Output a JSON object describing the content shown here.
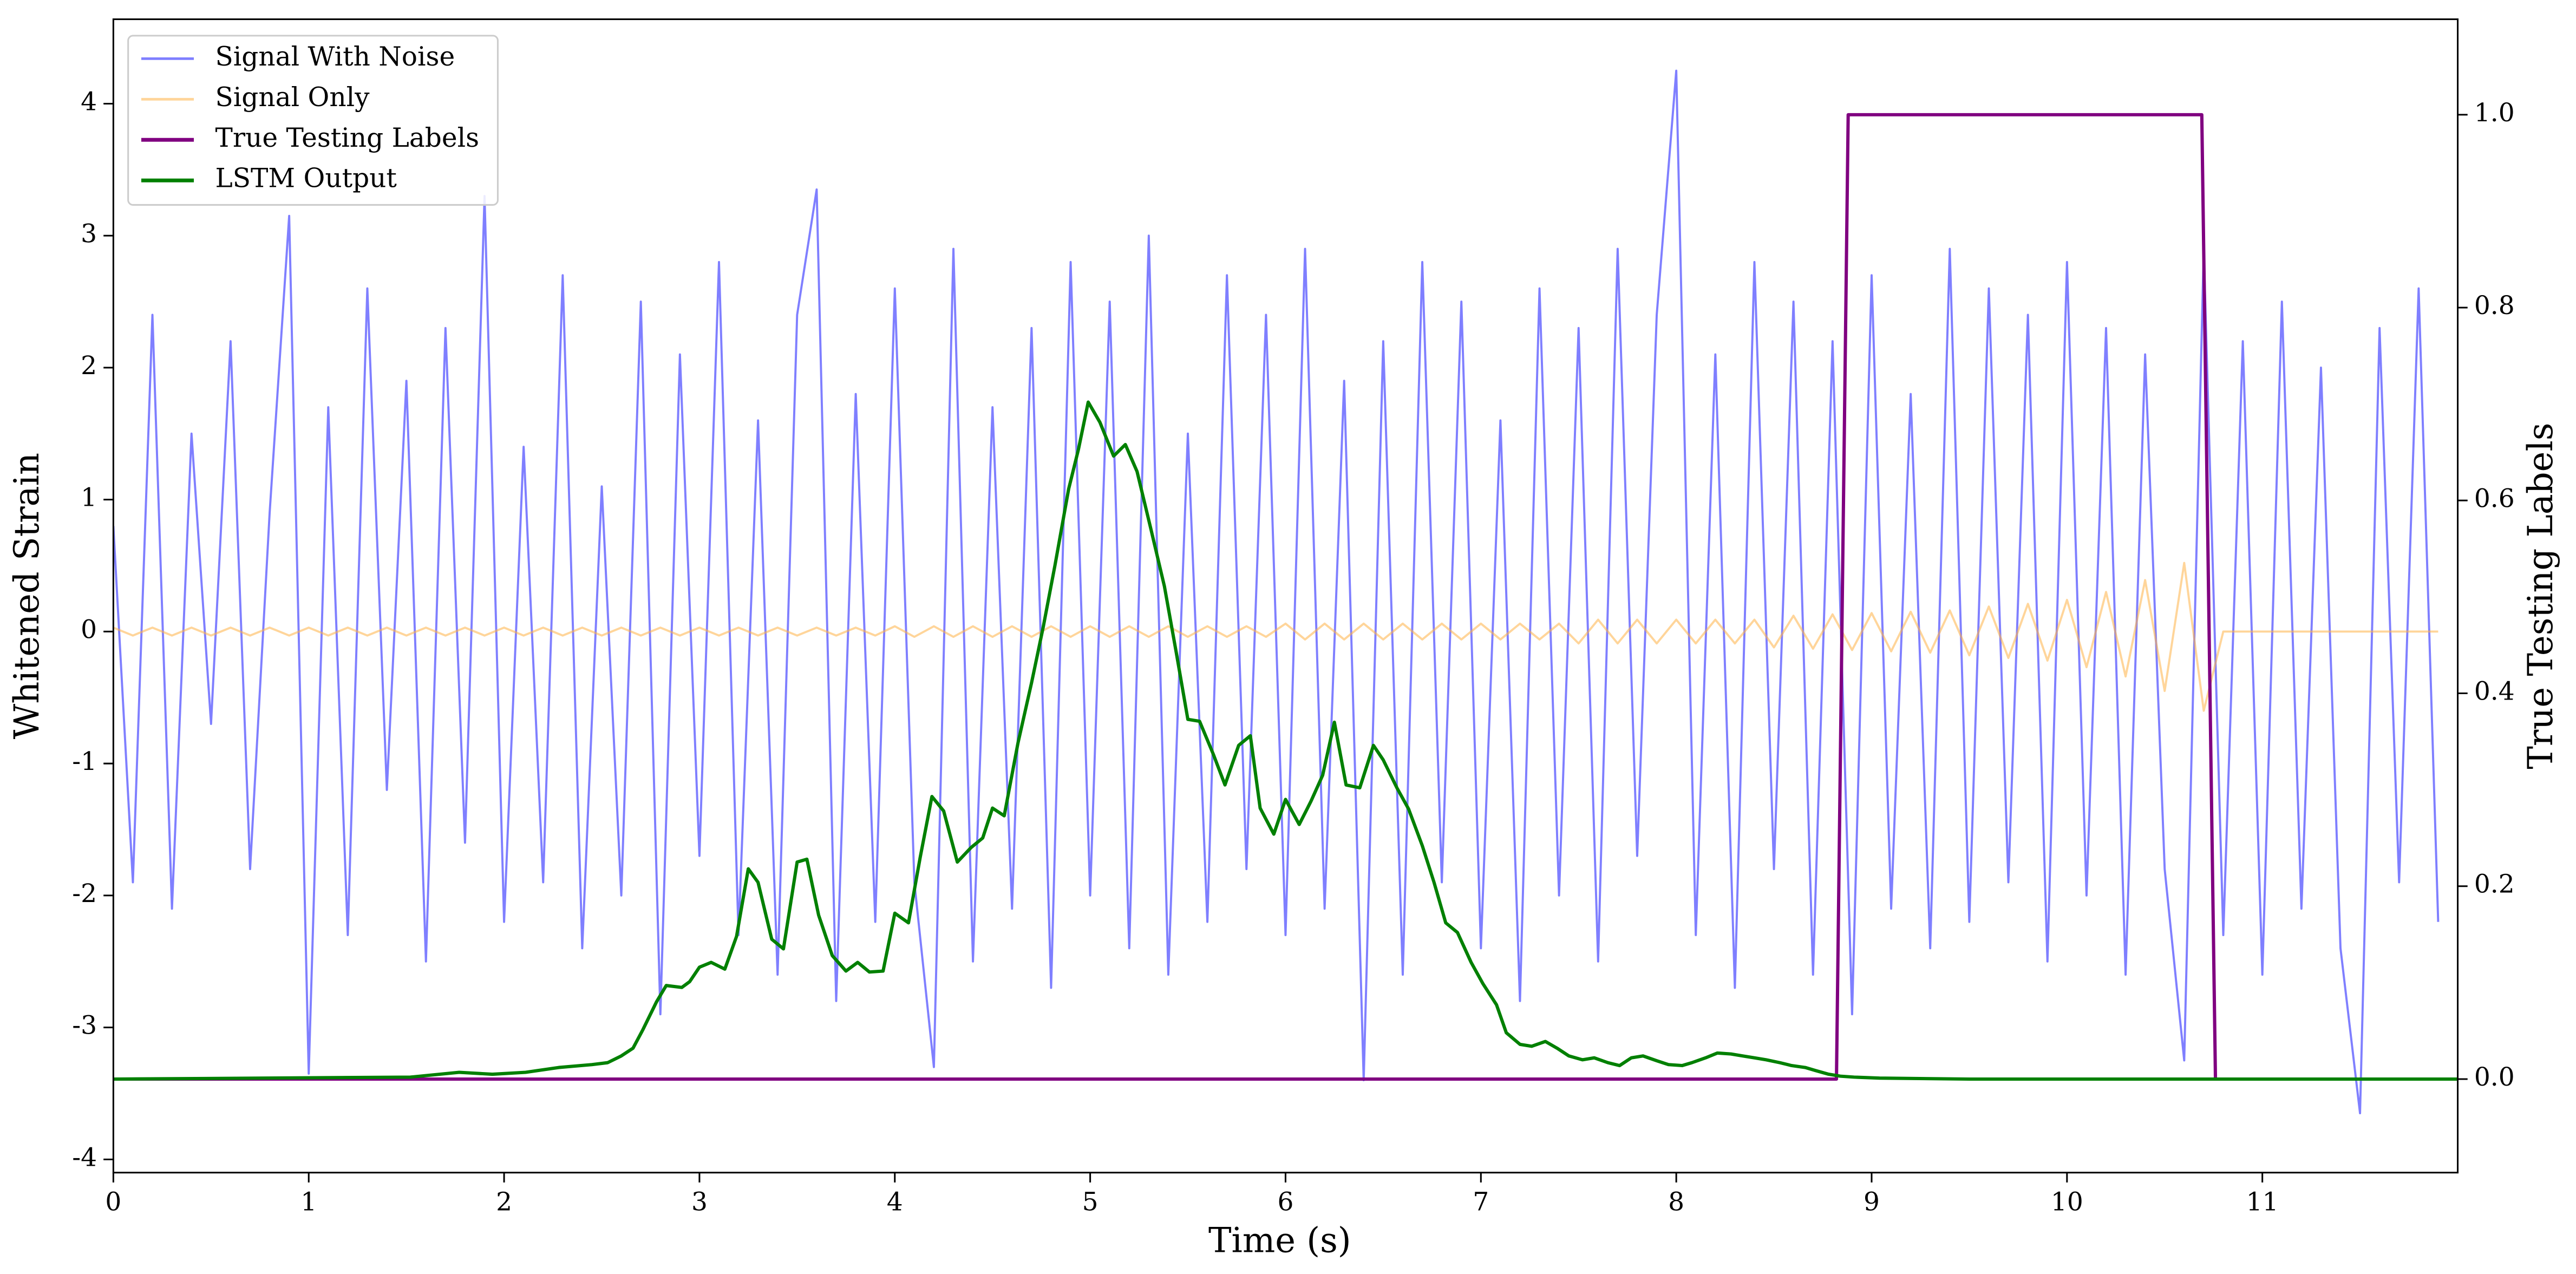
{
  "chart_data": {
    "type": "line",
    "x_label": "Time (s)",
    "y_label": "Whitened Strain",
    "y2_label": "True Testing Labels",
    "xlim": [
      0,
      12
    ],
    "ylim": [
      -4.1,
      4.64
    ],
    "y2lim": [
      -0.097,
      1.099
    ],
    "xticks": [
      0,
      1,
      2,
      3,
      4,
      5,
      6,
      7,
      8,
      9,
      10,
      11
    ],
    "yticks": [
      -4,
      -3,
      -2,
      -1,
      0,
      1,
      2,
      3,
      4
    ],
    "y2ticks": [
      {
        "value": 0,
        "label": "0.0"
      },
      {
        "value": 0.2,
        "label": "0.2"
      },
      {
        "value": 0.4,
        "label": "0.4"
      },
      {
        "value": 0.6,
        "label": "0.6"
      },
      {
        "value": 0.8,
        "label": "0.8"
      },
      {
        "value": 1,
        "label": "1.0"
      }
    ],
    "legend": "upper left",
    "series": [
      {
        "name": "Signal With Noise",
        "color": "#7f7fff",
        "x": [
          0,
          0.1,
          0.2,
          0.3,
          0.4,
          0.5,
          0.6,
          0.7,
          0.8,
          0.9,
          1,
          1.1,
          1.2,
          1.3,
          1.4,
          1.5,
          1.6,
          1.7,
          1.8,
          1.9,
          2,
          2.1,
          2.2,
          2.3,
          2.4,
          2.5,
          2.6,
          2.7,
          2.8,
          2.9,
          3,
          3.1,
          3.2,
          3.3,
          3.4,
          3.5,
          3.6,
          3.7,
          3.8,
          3.9,
          4,
          4.1,
          4.2,
          4.3,
          4.4,
          4.5,
          4.6,
          4.7,
          4.8,
          4.9,
          5,
          5.1,
          5.2,
          5.3,
          5.4,
          5.5,
          5.6,
          5.7,
          5.8,
          5.9,
          6,
          6.1,
          6.2,
          6.3,
          6.4,
          6.5,
          6.6,
          6.7,
          6.8,
          6.9,
          7,
          7.1,
          7.2,
          7.3,
          7.4,
          7.5,
          7.6,
          7.7,
          7.8,
          7.9,
          8,
          8.1,
          8.2,
          8.3,
          8.4,
          8.5,
          8.6,
          8.7,
          8.8,
          8.9,
          9,
          9.1,
          9.2,
          9.3,
          9.4,
          9.5,
          9.6,
          9.7,
          9.8,
          9.9,
          10,
          10.1,
          10.2,
          10.3,
          10.4,
          10.5,
          10.6,
          10.7,
          10.8,
          10.9,
          11,
          11.1,
          11.2,
          11.3,
          11.4,
          11.5,
          11.6,
          11.7,
          11.8,
          11.9
        ],
        "values": [
          0.8,
          -1.9,
          2.4,
          -2.1,
          1.5,
          -0.7,
          2.2,
          -1.8,
          0.9,
          3.15,
          -3.35,
          1.7,
          -2.3,
          2.6,
          -1.2,
          1.9,
          -2.5,
          2.3,
          -1.6,
          3.3,
          -2.2,
          1.4,
          -1.9,
          2.7,
          -2.4,
          1.1,
          -2.0,
          2.5,
          -2.9,
          2.1,
          -1.7,
          2.8,
          -2.3,
          1.6,
          -2.6,
          2.4,
          3.35,
          -2.8,
          1.8,
          -2.2,
          2.6,
          -1.9,
          -3.3,
          2.9,
          -2.5,
          1.7,
          -2.1,
          2.3,
          -2.7,
          2.8,
          -2.0,
          2.5,
          -2.4,
          3.0,
          -2.6,
          1.5,
          -2.2,
          2.7,
          -1.8,
          2.4,
          -2.3,
          2.9,
          -2.1,
          1.9,
          -3.4,
          2.2,
          -2.6,
          2.8,
          -1.9,
          2.5,
          -2.4,
          1.6,
          -2.8,
          2.6,
          -2.0,
          2.3,
          -2.5,
          2.9,
          -1.7,
          2.4,
          4.25,
          -2.3,
          2.1,
          -2.7,
          2.8,
          -1.8,
          2.5,
          -2.6,
          2.2,
          -2.9,
          2.7,
          -2.1,
          1.8,
          -2.4,
          2.9,
          -2.2,
          2.6,
          -1.9,
          2.4,
          -2.5,
          2.8,
          -2.0,
          2.3,
          -2.6,
          2.1,
          -1.8,
          -3.25,
          2.9,
          -2.3,
          2.2,
          -2.6,
          2.5,
          -2.1,
          2.0,
          -2.4,
          -3.65,
          2.3,
          -1.9,
          2.6,
          -2.2
        ]
      },
      {
        "name": "Signal Only",
        "color": "#ffb347",
        "x": [
          0,
          0.1,
          0.2,
          0.3,
          0.4,
          0.5,
          0.6,
          0.7,
          0.8,
          0.9,
          1,
          1.1,
          1.2,
          1.3,
          1.4,
          1.5,
          1.6,
          1.7,
          1.8,
          1.9,
          2,
          2.1,
          2.2,
          2.3,
          2.4,
          2.5,
          2.6,
          2.7,
          2.8,
          2.9,
          3,
          3.1,
          3.2,
          3.3,
          3.4,
          3.5,
          3.6,
          3.7,
          3.8,
          3.9,
          4,
          4.1,
          4.2,
          4.3,
          4.4,
          4.5,
          4.6,
          4.7,
          4.8,
          4.9,
          5,
          5.1,
          5.2,
          5.3,
          5.4,
          5.5,
          5.6,
          5.7,
          5.8,
          5.9,
          6,
          6.1,
          6.2,
          6.3,
          6.4,
          6.5,
          6.6,
          6.7,
          6.8,
          6.9,
          7,
          7.1,
          7.2,
          7.3,
          7.4,
          7.5,
          7.6,
          7.7,
          7.8,
          7.9,
          8,
          8.1,
          8.2,
          8.3,
          8.4,
          8.5,
          8.6,
          8.7,
          8.8,
          8.9,
          9,
          9.1,
          9.2,
          9.3,
          9.4,
          9.5,
          9.6,
          9.7,
          9.8,
          9.9,
          10,
          10.1,
          10.2,
          10.3,
          10.4,
          10.5,
          10.6,
          10.7,
          10.8,
          10.9,
          11,
          11.1,
          11.2,
          11.3,
          11.4,
          11.5,
          11.6,
          11.7,
          11.8,
          11.9
        ],
        "values": [
          0.03,
          -0.03,
          0.03,
          -0.03,
          0.03,
          -0.03,
          0.03,
          -0.03,
          0.03,
          -0.03,
          0.03,
          -0.03,
          0.03,
          -0.03,
          0.03,
          -0.03,
          0.03,
          -0.03,
          0.03,
          -0.03,
          0.03,
          -0.03,
          0.03,
          -0.03,
          0.03,
          -0.03,
          0.03,
          -0.03,
          0.03,
          -0.03,
          0.03,
          -0.03,
          0.03,
          -0.03,
          0.03,
          -0.03,
          0.03,
          -0.03,
          0.03,
          -0.03,
          0.04,
          -0.04,
          0.04,
          -0.04,
          0.04,
          -0.04,
          0.04,
          -0.04,
          0.04,
          -0.04,
          0.04,
          -0.04,
          0.04,
          -0.04,
          0.04,
          -0.04,
          0.04,
          -0.04,
          0.04,
          -0.04,
          0.06,
          -0.06,
          0.06,
          -0.06,
          0.06,
          -0.06,
          0.06,
          -0.06,
          0.06,
          -0.06,
          0.06,
          -0.06,
          0.06,
          -0.06,
          0.06,
          -0.09,
          0.09,
          -0.09,
          0.09,
          -0.09,
          0.09,
          -0.09,
          0.09,
          -0.09,
          0.09,
          -0.12,
          0.12,
          -0.13,
          0.13,
          -0.14,
          0.14,
          -0.15,
          0.15,
          -0.16,
          0.16,
          -0.18,
          0.19,
          -0.2,
          0.21,
          -0.22,
          0.24,
          -0.27,
          0.3,
          -0.34,
          0.39,
          -0.45,
          0.52,
          -0.6,
          0,
          0,
          0,
          0,
          0,
          0,
          0,
          0,
          0,
          0,
          0,
          0
        ]
      },
      {
        "name": "True Testing Labels",
        "color": "#800080",
        "axis": "y2",
        "x": [
          0,
          8.82,
          8.88,
          10.69,
          10.76,
          12
        ],
        "values": [
          0,
          0,
          1,
          1,
          0,
          0
        ]
      },
      {
        "name": "LSTM Output",
        "color": "#008000",
        "axis": "y2",
        "x": [
          0,
          1.52,
          1.77,
          1.94,
          2.11,
          2.28,
          2.45,
          2.53,
          2.6,
          2.66,
          2.71,
          2.78,
          2.83,
          2.91,
          2.95,
          3,
          3.06,
          3.13,
          3.19,
          3.25,
          3.3,
          3.37,
          3.43,
          3.5,
          3.55,
          3.61,
          3.68,
          3.75,
          3.81,
          3.87,
          3.94,
          4,
          4.07,
          4.13,
          4.19,
          4.25,
          4.32,
          4.39,
          4.45,
          4.5,
          4.56,
          4.63,
          4.7,
          4.76,
          4.82,
          4.89,
          4.94,
          4.99,
          5.05,
          5.12,
          5.18,
          5.24,
          5.31,
          5.38,
          5.44,
          5.5,
          5.56,
          5.63,
          5.69,
          5.76,
          5.82,
          5.87,
          5.94,
          6,
          6.07,
          6.13,
          6.19,
          6.25,
          6.31,
          6.38,
          6.45,
          6.5,
          6.57,
          6.63,
          6.7,
          6.76,
          6.82,
          6.88,
          6.95,
          7.01,
          7.08,
          7.13,
          7.2,
          7.26,
          7.33,
          7.39,
          7.45,
          7.52,
          7.58,
          7.65,
          7.71,
          7.77,
          7.83,
          7.9,
          7.96,
          8.03,
          8.08,
          8.15,
          8.21,
          8.28,
          8.34,
          8.4,
          8.46,
          8.53,
          8.59,
          8.66,
          8.71,
          8.78,
          8.84,
          8.91,
          9.04,
          9.5,
          12
        ],
        "values": [
          0,
          0.002,
          0.007,
          0.005,
          0.007,
          0.012,
          0.015,
          0.017,
          0.024,
          0.032,
          0.051,
          0.08,
          0.097,
          0.095,
          0.101,
          0.116,
          0.121,
          0.114,
          0.148,
          0.218,
          0.204,
          0.145,
          0.135,
          0.225,
          0.228,
          0.17,
          0.128,
          0.112,
          0.121,
          0.111,
          0.112,
          0.172,
          0.162,
          0.23,
          0.293,
          0.278,
          0.225,
          0.24,
          0.25,
          0.281,
          0.273,
          0.348,
          0.411,
          0.469,
          0.533,
          0.612,
          0.653,
          0.702,
          0.681,
          0.646,
          0.658,
          0.63,
          0.571,
          0.511,
          0.443,
          0.373,
          0.371,
          0.337,
          0.305,
          0.346,
          0.356,
          0.281,
          0.254,
          0.29,
          0.264,
          0.288,
          0.315,
          0.37,
          0.305,
          0.302,
          0.346,
          0.331,
          0.302,
          0.28,
          0.242,
          0.204,
          0.162,
          0.152,
          0.121,
          0.099,
          0.077,
          0.048,
          0.036,
          0.034,
          0.039,
          0.032,
          0.024,
          0.02,
          0.022,
          0.017,
          0.014,
          0.022,
          0.024,
          0.019,
          0.015,
          0.014,
          0.017,
          0.022,
          0.027,
          0.026,
          0.024,
          0.022,
          0.02,
          0.017,
          0.014,
          0.012,
          0.009,
          0.005,
          0.003,
          0.002,
          0.001,
          0,
          0
        ]
      }
    ]
  }
}
